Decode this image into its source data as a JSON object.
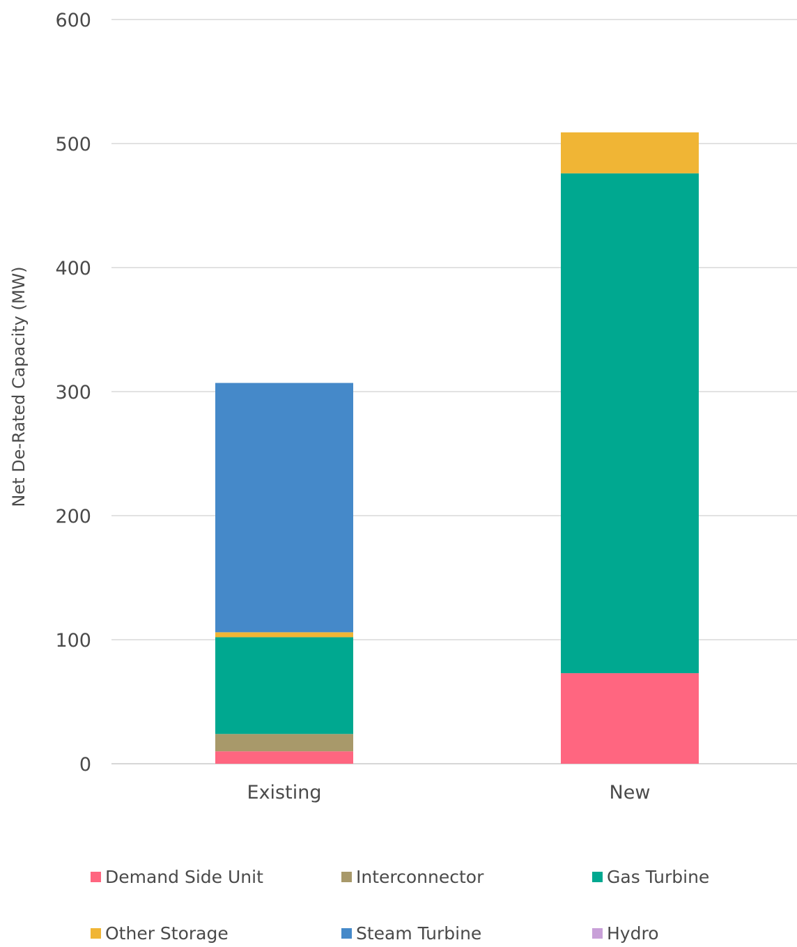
{
  "chart_data": {
    "type": "bar",
    "stacked": true,
    "title": "",
    "xlabel": "",
    "ylabel": "Net De-Rated Capacity (MW)",
    "ylim": [
      0,
      600
    ],
    "yticks": [
      0,
      100,
      200,
      300,
      400,
      500,
      600
    ],
    "grid": true,
    "legend_position": "bottom",
    "categories": [
      "Existing",
      "New"
    ],
    "series": [
      {
        "name": "Demand Side Unit",
        "color": "#ff6680",
        "values": [
          10,
          73
        ]
      },
      {
        "name": "Interconnector",
        "color": "#a8996a",
        "values": [
          14,
          0
        ]
      },
      {
        "name": "Gas Turbine",
        "color": "#00a890",
        "values": [
          78,
          403
        ]
      },
      {
        "name": "Other Storage",
        "color": "#f0b535",
        "values": [
          4,
          33
        ]
      },
      {
        "name": "Steam Turbine",
        "color": "#4589c9",
        "values": [
          201,
          0
        ]
      },
      {
        "name": "Hydro",
        "color": "#c8a0d8",
        "values": [
          0,
          0
        ]
      }
    ]
  }
}
